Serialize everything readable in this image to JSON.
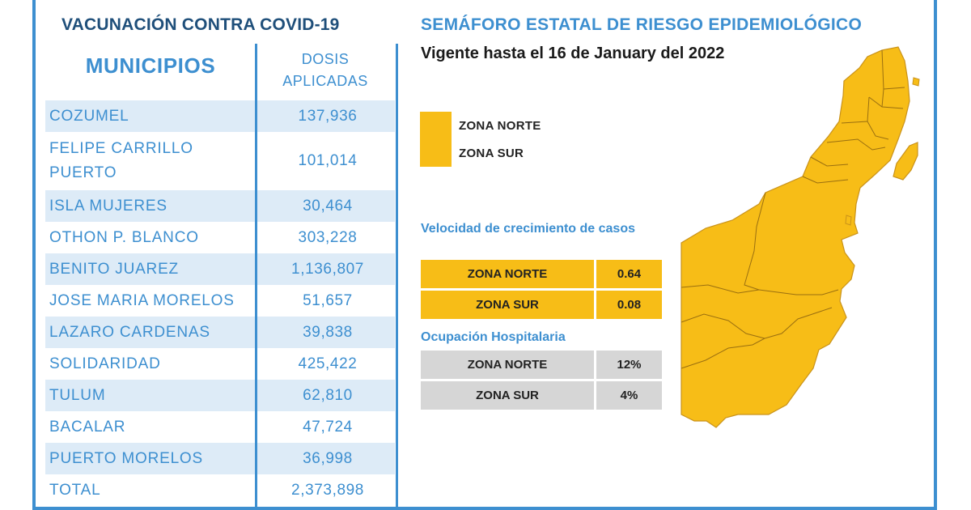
{
  "vaccination": {
    "title": "VACUNACIÓN CONTRA COVID-19",
    "col_municipios": "MUNICIPIOS",
    "col_dosis_line1": "DOSIS",
    "col_dosis_line2": "APLICADAS",
    "rows": [
      {
        "name": "COZUMEL",
        "doses": "137,936"
      },
      {
        "name": "FELIPE CARRILLO PUERTO",
        "doses": "101,014"
      },
      {
        "name": "ISLA MUJERES",
        "doses": "30,464"
      },
      {
        "name": "OTHON P. BLANCO",
        "doses": "303,228"
      },
      {
        "name": "BENITO JUAREZ",
        "doses": "1,136,807"
      },
      {
        "name": "JOSE MARIA MORELOS",
        "doses": "51,657"
      },
      {
        "name": "LAZARO CARDENAS",
        "doses": "39,838"
      },
      {
        "name": "SOLIDARIDAD",
        "doses": "425,422"
      },
      {
        "name": "TULUM",
        "doses": "62,810"
      },
      {
        "name": "BACALAR",
        "doses": "47,724"
      },
      {
        "name": "PUERTO MORELOS",
        "doses": "36,998"
      },
      {
        "name": "TOTAL",
        "doses": "2,373,898"
      }
    ]
  },
  "semaforo": {
    "title": "SEMÁFORO ESTATAL DE RIESGO EPIDEMIOLÓGICO",
    "vigente": "Vigente hasta el 16 de January del 2022",
    "legend": [
      {
        "label": "ZONA NORTE",
        "color": "#f7bd17"
      },
      {
        "label": "ZONA SUR",
        "color": "#f7bd17"
      }
    ],
    "growth": {
      "title": "Velocidad de crecimiento de casos",
      "rows": [
        {
          "zone": "ZONA NORTE",
          "value": "0.64"
        },
        {
          "zone": "ZONA SUR",
          "value": "0.08"
        }
      ]
    },
    "hospital": {
      "title": "Ocupación Hospitalaria",
      "rows": [
        {
          "zone": "ZONA NORTE",
          "value": "12%"
        },
        {
          "zone": "ZONA SUR",
          "value": "4%"
        }
      ]
    }
  },
  "colors": {
    "accent_blue": "#3d8fd0",
    "title_navy": "#1f4f7a",
    "row_alt_blue": "#ddebf7",
    "zone_yellow": "#f7bd17",
    "hospital_gray": "#d6d6d6"
  }
}
